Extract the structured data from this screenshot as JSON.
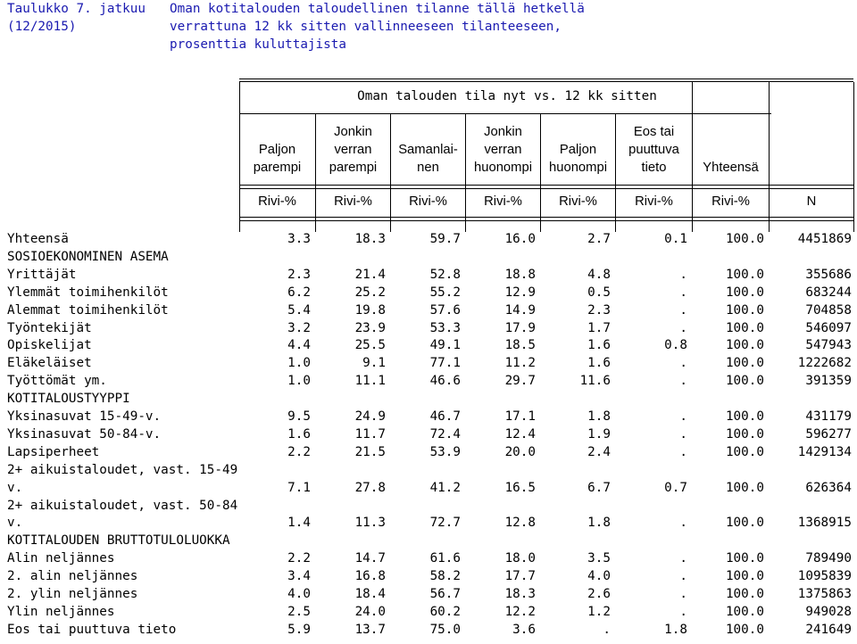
{
  "title": {
    "label": "Taulukko 7. jatkuu",
    "label_cont": "(12/2015)",
    "lines": [
      "Oman kotitalouden taloudellinen tilanne tällä hetkellä",
      "verrattuna 12 kk sitten vallinneeseen tilanteeseen,",
      "prosenttia kuluttajista"
    ]
  },
  "table": {
    "group_header": "Oman talouden tila nyt vs. 12 kk sitten",
    "columns": [
      {
        "lines": [
          "",
          "Paljon",
          "parempi"
        ]
      },
      {
        "lines": [
          "Jonkin",
          "verran",
          "parempi"
        ]
      },
      {
        "lines": [
          "",
          "Samanlai-",
          "nen"
        ]
      },
      {
        "lines": [
          "Jonkin",
          "verran",
          "huonompi"
        ]
      },
      {
        "lines": [
          "",
          "Paljon",
          "huonompi"
        ]
      },
      {
        "lines": [
          "Eos tai",
          "puuttuva",
          "tieto"
        ]
      },
      {
        "lines": [
          "",
          "",
          "Yhteensä"
        ]
      }
    ],
    "unit_labels": [
      "Rivi-%",
      "Rivi-%",
      "Rivi-%",
      "Rivi-%",
      "Rivi-%",
      "Rivi-%",
      "Rivi-%",
      "N"
    ],
    "rows": [
      {
        "label": "Yhteensä",
        "values": [
          "3.3",
          "18.3",
          "59.7",
          "16.0",
          "2.7",
          "0.1",
          "100.0",
          "4451869"
        ]
      },
      {
        "label": "SOSIOEKONOMINEN ASEMA",
        "section": true
      },
      {
        "label": "Yrittäjät",
        "values": [
          "2.3",
          "21.4",
          "52.8",
          "18.8",
          "4.8",
          ".",
          "100.0",
          "355686"
        ]
      },
      {
        "label": "Ylemmät toimihenkilöt",
        "values": [
          "6.2",
          "25.2",
          "55.2",
          "12.9",
          "0.5",
          ".",
          "100.0",
          "683244"
        ]
      },
      {
        "label": "Alemmat toimihenkilöt",
        "values": [
          "5.4",
          "19.8",
          "57.6",
          "14.9",
          "2.3",
          ".",
          "100.0",
          "704858"
        ]
      },
      {
        "label": "Työntekijät",
        "values": [
          "3.2",
          "23.9",
          "53.3",
          "17.9",
          "1.7",
          ".",
          "100.0",
          "546097"
        ]
      },
      {
        "label": "Opiskelijat",
        "values": [
          "4.4",
          "25.5",
          "49.1",
          "18.5",
          "1.6",
          "0.8",
          "100.0",
          "547943"
        ]
      },
      {
        "label": "Eläkeläiset",
        "values": [
          "1.0",
          "9.1",
          "77.1",
          "11.2",
          "1.6",
          ".",
          "100.0",
          "1222682"
        ]
      },
      {
        "label": "Työttömät ym.",
        "values": [
          "1.0",
          "11.1",
          "46.6",
          "29.7",
          "11.6",
          ".",
          "100.0",
          "391359"
        ]
      },
      {
        "label": "KOTITALOUSTYYPPI",
        "section": true
      },
      {
        "label": "Yksinasuvat 15-49-v.",
        "values": [
          "9.5",
          "24.9",
          "46.7",
          "17.1",
          "1.8",
          ".",
          "100.0",
          "431179"
        ]
      },
      {
        "label": "Yksinasuvat 50-84-v.",
        "values": [
          "1.6",
          "11.7",
          "72.4",
          "12.4",
          "1.9",
          ".",
          "100.0",
          "596277"
        ]
      },
      {
        "label": "Lapsiperheet",
        "values": [
          "2.2",
          "21.5",
          "53.9",
          "20.0",
          "2.4",
          ".",
          "100.0",
          "1429134"
        ]
      },
      {
        "label": "2+ aikuistaloudet, vast. 15-49",
        "section": true
      },
      {
        "label": "v.",
        "values": [
          "7.1",
          "27.8",
          "41.2",
          "16.5",
          "6.7",
          "0.7",
          "100.0",
          "626364"
        ]
      },
      {
        "label": "2+ aikuistaloudet, vast. 50-84",
        "section": true
      },
      {
        "label": "v.",
        "values": [
          "1.4",
          "11.3",
          "72.7",
          "12.8",
          "1.8",
          ".",
          "100.0",
          "1368915"
        ]
      },
      {
        "label": "KOTITALOUDEN BRUTTOTULOLUOKKA",
        "section": true
      },
      {
        "label": "Alin neljännes",
        "values": [
          "2.2",
          "14.7",
          "61.6",
          "18.0",
          "3.5",
          ".",
          "100.0",
          "789490"
        ]
      },
      {
        "label": "2. alin neljännes",
        "values": [
          "3.4",
          "16.8",
          "58.2",
          "17.7",
          "4.0",
          ".",
          "100.0",
          "1095839"
        ]
      },
      {
        "label": "2. ylin neljännes",
        "values": [
          "4.0",
          "18.4",
          "56.7",
          "18.3",
          "2.6",
          ".",
          "100.0",
          "1375863"
        ]
      },
      {
        "label": "Ylin neljännes",
        "values": [
          "2.5",
          "24.0",
          "60.2",
          "12.2",
          "1.2",
          ".",
          "100.0",
          "949028"
        ]
      },
      {
        "label": "Eos tai puuttuva tieto",
        "values": [
          "5.9",
          "13.7",
          "75.0",
          "3.6",
          ".",
          "1.8",
          "100.0",
          "241649"
        ]
      }
    ]
  }
}
